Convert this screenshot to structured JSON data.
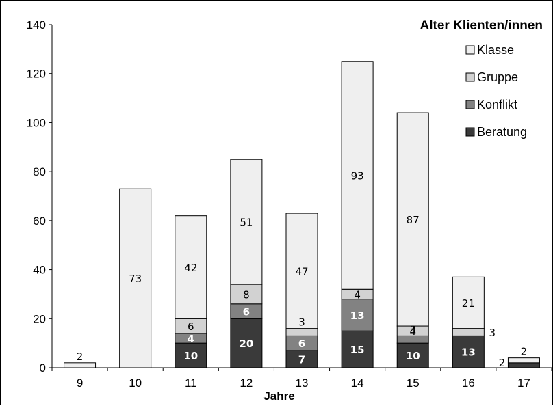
{
  "chart_data": {
    "type": "bar",
    "stacked": true,
    "title": "Alter Klienten/innen",
    "xlabel": "Jahre",
    "ylabel": "",
    "ylim": [
      0,
      140
    ],
    "yticks": [
      "0",
      "20",
      "40",
      "60",
      "80",
      "100",
      "120",
      "140"
    ],
    "categories": [
      "9",
      "10",
      "11",
      "12",
      "13",
      "14",
      "15",
      "16",
      "17"
    ],
    "legend_position": "top-right",
    "grid": false,
    "series": [
      {
        "name": "Beratung",
        "color": "#3a3a3a",
        "label_color": "#ffffff",
        "values": [
          0,
          0,
          10,
          20,
          7,
          15,
          10,
          13,
          2
        ]
      },
      {
        "name": "Konflikt",
        "color": "#828282",
        "label_color": "#ffffff",
        "values": [
          0,
          0,
          4,
          6,
          6,
          13,
          3,
          0,
          0
        ]
      },
      {
        "name": "Gruppe",
        "color": "#d2d2d2",
        "label_color": "#000000",
        "values": [
          0,
          0,
          6,
          8,
          3,
          4,
          4,
          3,
          0
        ]
      },
      {
        "name": "Klasse",
        "color": "#efefef",
        "label_color": "#000000",
        "values": [
          2,
          73,
          42,
          51,
          47,
          93,
          87,
          21,
          2
        ]
      }
    ],
    "labels": [
      [
        "",
        "",
        "10",
        "20",
        "7",
        "15",
        "10",
        "13",
        "2"
      ],
      [
        "",
        "",
        "4",
        "6",
        "6",
        "13",
        "3",
        "",
        ""
      ],
      [
        "",
        "",
        "6",
        "8",
        "3",
        "4",
        "4",
        "3",
        ""
      ],
      [
        "2",
        "73",
        "42",
        "51",
        "47",
        "93",
        "87",
        "21",
        "2"
      ]
    ]
  }
}
